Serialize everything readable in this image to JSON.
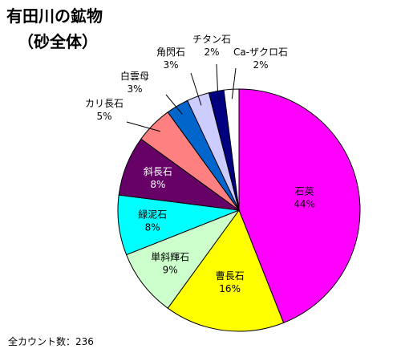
{
  "chart_data": {
    "type": "pie",
    "title": "有田川の鉱物",
    "subtitle": "（砂全体）",
    "slices": [
      {
        "name": "石英",
        "value": 44,
        "label": "44%",
        "color": "#FF00FF"
      },
      {
        "name": "曹長石",
        "value": 16,
        "label": "16%",
        "color": "#FFFF00"
      },
      {
        "name": "単斜輝石",
        "value": 9,
        "label": "9%",
        "color": "#CCFFCC"
      },
      {
        "name": "緑泥石",
        "value": 8,
        "label": "8%",
        "color": "#00FFFF"
      },
      {
        "name": "斜長石",
        "value": 8,
        "label": "8%",
        "color": "#660066"
      },
      {
        "name": "カリ長石",
        "value": 5,
        "label": "5%",
        "color": "#FF8080"
      },
      {
        "name": "白雲母",
        "value": 3,
        "label": "3%",
        "color": "#0066CC"
      },
      {
        "name": "角閃石",
        "value": 3,
        "label": "3%",
        "color": "#CCCCFF"
      },
      {
        "name": "チタン石",
        "value": 2,
        "label": "2%",
        "color": "#000080"
      },
      {
        "name": "Ca-ザクロ石",
        "value": 2,
        "label": "2%",
        "color": "#FFFFFF"
      }
    ],
    "legend": "none",
    "label_mode": "name-and-percent"
  },
  "footnote": "全カウント数：236"
}
